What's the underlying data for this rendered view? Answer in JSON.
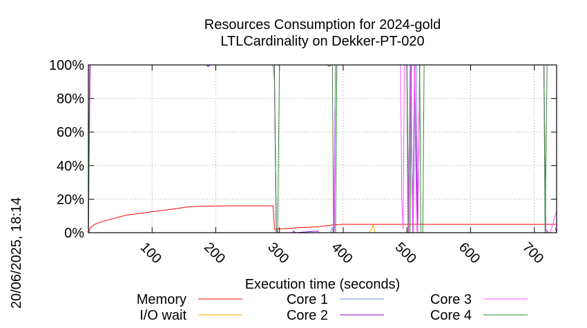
{
  "chart_data": {
    "type": "line",
    "title": [
      "Resources Consumption for 2024-gold",
      "LTLCardinality on Dekker-PT-020"
    ],
    "xlabel": "Execution time (seconds)",
    "ylabel": "",
    "timestamp": "20/06/2025, 18:14",
    "xlim": [
      0,
      735
    ],
    "ylim": [
      0,
      100
    ],
    "xticks": [
      100,
      200,
      300,
      400,
      500,
      600,
      700
    ],
    "yticks": [
      0,
      20,
      40,
      60,
      80,
      100
    ],
    "ytick_labels": [
      "0%",
      "20%",
      "40%",
      "60%",
      "80%",
      "100%"
    ],
    "grid": true,
    "legend_position": "bottom",
    "series": [
      {
        "name": "Memory",
        "color": "#ff0000",
        "points": [
          [
            0,
            0
          ],
          [
            3,
            3
          ],
          [
            10,
            5
          ],
          [
            20,
            6.5
          ],
          [
            40,
            8.5
          ],
          [
            60,
            10.5
          ],
          [
            80,
            11.5
          ],
          [
            100,
            12.5
          ],
          [
            120,
            13.5
          ],
          [
            140,
            14.5
          ],
          [
            160,
            15.5
          ],
          [
            180,
            15.8
          ],
          [
            220,
            16
          ],
          [
            260,
            16
          ],
          [
            290,
            16
          ],
          [
            292,
            2
          ],
          [
            310,
            2.5
          ],
          [
            330,
            3
          ],
          [
            360,
            3.5
          ],
          [
            380,
            4.5
          ],
          [
            400,
            5
          ],
          [
            500,
            5
          ],
          [
            600,
            5
          ],
          [
            700,
            5
          ],
          [
            735,
            5
          ]
        ]
      },
      {
        "name": "I/O wait",
        "color": "#ffa500",
        "points": [
          [
            0,
            0
          ],
          [
            440,
            0
          ],
          [
            445,
            2
          ],
          [
            447,
            5
          ],
          [
            450,
            0
          ],
          [
            500,
            0
          ],
          [
            600,
            0
          ],
          [
            735,
            0
          ]
        ]
      },
      {
        "name": "Core 1",
        "color": "#6f8fd8",
        "points": [
          [
            0,
            0
          ],
          [
            1,
            35
          ],
          [
            3,
            100
          ],
          [
            290,
            100
          ],
          [
            292,
            92
          ],
          [
            295,
            3
          ],
          [
            297,
            0
          ],
          [
            380,
            0
          ],
          [
            383,
            3
          ],
          [
            385,
            0
          ],
          [
            388,
            100
          ],
          [
            500,
            100
          ],
          [
            502,
            0
          ],
          [
            505,
            100
          ],
          [
            510,
            0
          ],
          [
            513,
            100
          ],
          [
            515,
            100
          ],
          [
            517,
            0
          ],
          [
            520,
            100
          ],
          [
            715,
            100
          ],
          [
            717,
            0
          ],
          [
            720,
            0
          ],
          [
            735,
            0
          ]
        ]
      },
      {
        "name": "Core 2",
        "color": "#9400d3",
        "points": [
          [
            0,
            0
          ],
          [
            1,
            60
          ],
          [
            3,
            100
          ],
          [
            185,
            100
          ],
          [
            188,
            99
          ],
          [
            191,
            100
          ],
          [
            290,
            100
          ],
          [
            292,
            92
          ],
          [
            295,
            0
          ],
          [
            320,
            0
          ],
          [
            322,
            1
          ],
          [
            325,
            0
          ],
          [
            360,
            1
          ],
          [
            362,
            0
          ],
          [
            383,
            0
          ],
          [
            386,
            2
          ],
          [
            388,
            100
          ],
          [
            500,
            100
          ],
          [
            503,
            0
          ],
          [
            506,
            100
          ],
          [
            509,
            0
          ],
          [
            512,
            100
          ],
          [
            517,
            0
          ],
          [
            520,
            100
          ],
          [
            715,
            100
          ],
          [
            718,
            2
          ],
          [
            722,
            0
          ],
          [
            735,
            0
          ],
          [
            733,
            3
          ]
        ]
      },
      {
        "name": "Core 3",
        "color": "#ff4fff",
        "points": [
          [
            0,
            0
          ],
          [
            1,
            40
          ],
          [
            3,
            100
          ],
          [
            290,
            100
          ],
          [
            292,
            90
          ],
          [
            295,
            2
          ],
          [
            297,
            0
          ],
          [
            383,
            0
          ],
          [
            386,
            1
          ],
          [
            388,
            100
          ],
          [
            490,
            100
          ],
          [
            492,
            20
          ],
          [
            494,
            2
          ],
          [
            496,
            100
          ],
          [
            500,
            100
          ],
          [
            503,
            0
          ],
          [
            506,
            100
          ],
          [
            509,
            0
          ],
          [
            512,
            100
          ],
          [
            515,
            2
          ],
          [
            517,
            0
          ],
          [
            520,
            100
          ],
          [
            715,
            100
          ],
          [
            718,
            0
          ],
          [
            725,
            0
          ],
          [
            735,
            13
          ]
        ]
      },
      {
        "name": "Core 4",
        "color": "#2e8b2e",
        "points": [
          [
            0,
            0
          ],
          [
            2,
            100
          ],
          [
            290,
            100
          ],
          [
            292,
            100
          ],
          [
            295,
            2
          ],
          [
            297,
            0
          ],
          [
            300,
            100
          ],
          [
            375,
            100
          ],
          [
            378,
            99
          ],
          [
            381,
            100
          ],
          [
            383,
            100
          ],
          [
            385,
            0
          ],
          [
            388,
            0
          ],
          [
            390,
            100
          ],
          [
            500,
            100
          ],
          [
            502,
            0
          ],
          [
            505,
            0
          ],
          [
            507,
            100
          ],
          [
            520,
            100
          ],
          [
            522,
            0
          ],
          [
            525,
            0
          ],
          [
            527,
            100
          ],
          [
            715,
            100
          ],
          [
            717,
            0
          ],
          [
            720,
            100
          ],
          [
            735,
            100
          ],
          [
            737,
            90
          ]
        ]
      }
    ]
  }
}
